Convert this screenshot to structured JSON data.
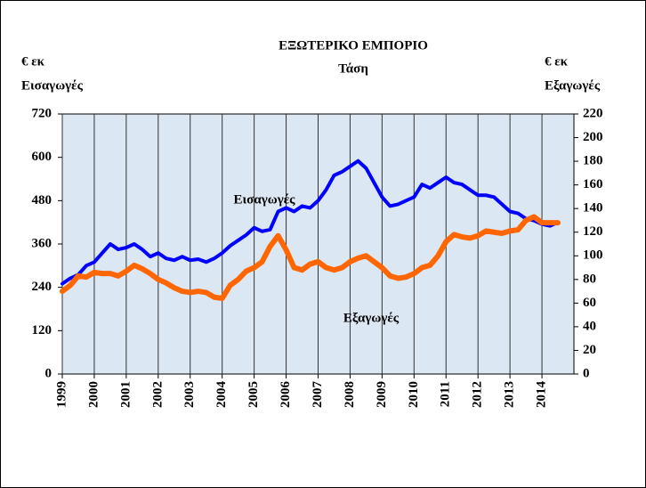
{
  "chart_data": {
    "type": "line",
    "title": "ΕΞΩΤΕΡΙΚΟ ΕΜΠΟΡΙΟ",
    "subtitle": "Τάση",
    "ylabel_unit": "€ εκ",
    "ylabel": "Εισαγωγές",
    "y2label_unit": "€ εκ",
    "y2label": "Εξαγωγές",
    "x": [
      1999,
      1999.25,
      1999.5,
      1999.75,
      2000,
      2000.25,
      2000.5,
      2000.75,
      2001,
      2001.25,
      2001.5,
      2001.75,
      2002,
      2002.25,
      2002.5,
      2002.75,
      2003,
      2003.25,
      2003.5,
      2003.75,
      2004,
      2004.25,
      2004.5,
      2004.75,
      2005,
      2005.25,
      2005.5,
      2005.75,
      2006,
      2006.25,
      2006.5,
      2006.75,
      2007,
      2007.25,
      2007.5,
      2007.75,
      2008,
      2008.25,
      2008.5,
      2008.75,
      2009,
      2009.25,
      2009.5,
      2009.75,
      2010,
      2010.25,
      2010.5,
      2010.75,
      2011,
      2011.25,
      2011.5,
      2011.75,
      2012,
      2012.25,
      2012.5,
      2012.75,
      2013,
      2013.25,
      2013.5,
      2013.75,
      2014,
      2014.25,
      2014.5
    ],
    "series": [
      {
        "name": "Εισαγωγές",
        "color": "#0000ff",
        "axis": "y",
        "values": [
          250,
          265,
          275,
          300,
          310,
          335,
          360,
          345,
          350,
          360,
          345,
          325,
          335,
          320,
          315,
          325,
          315,
          318,
          310,
          320,
          335,
          355,
          370,
          385,
          405,
          395,
          400,
          450,
          460,
          450,
          465,
          460,
          480,
          510,
          550,
          560,
          575,
          590,
          570,
          530,
          490,
          465,
          470,
          480,
          490,
          525,
          515,
          530,
          545,
          530,
          525,
          510,
          495,
          495,
          490,
          470,
          450,
          445,
          430,
          425,
          415,
          410,
          420
        ]
      },
      {
        "name": "Εξαγωγές",
        "color": "#ff6600",
        "axis": "y2",
        "values": [
          70,
          75,
          83,
          82,
          86,
          85,
          85,
          83,
          87,
          92,
          89,
          85,
          80,
          77,
          73,
          70,
          69,
          70,
          69,
          65,
          64,
          75,
          80,
          87,
          90,
          95,
          108,
          117,
          105,
          90,
          88,
          93,
          95,
          90,
          88,
          90,
          95,
          98,
          100,
          95,
          90,
          83,
          81,
          82,
          85,
          90,
          92,
          100,
          112,
          118,
          116,
          115,
          117,
          121,
          120,
          119,
          121,
          122,
          130,
          133,
          128,
          128,
          128
        ]
      }
    ],
    "xlim": [
      1999,
      2015
    ],
    "xticks": [
      1999,
      2000,
      2001,
      2002,
      2003,
      2004,
      2005,
      2006,
      2007,
      2008,
      2009,
      2010,
      2011,
      2012,
      2013,
      2014
    ],
    "ylim": [
      0,
      720
    ],
    "yticks": [
      0,
      120,
      240,
      360,
      480,
      600,
      720
    ],
    "y2lim": [
      0,
      220
    ],
    "y2ticks": [
      0,
      20,
      40,
      60,
      80,
      100,
      120,
      140,
      160,
      180,
      200,
      220
    ],
    "grid": true
  }
}
